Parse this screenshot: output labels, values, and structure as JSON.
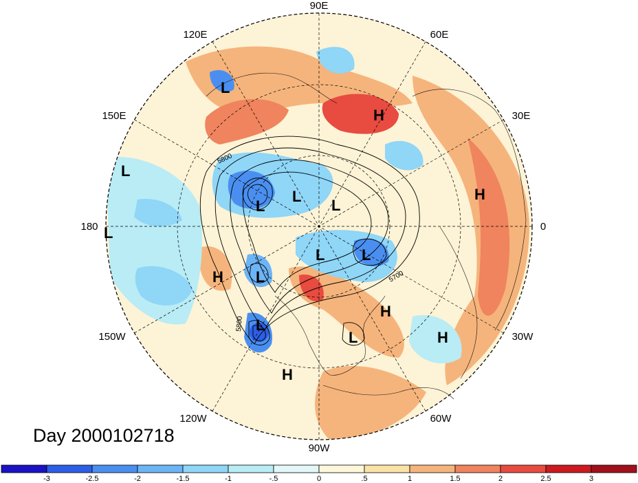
{
  "title": "Day 2000102718",
  "longitude_labels": [
    "90E",
    "60E",
    "30E",
    "0",
    "30W",
    "60W",
    "90W",
    "120W",
    "150W",
    "180",
    "150E",
    "120E"
  ],
  "pressure_systems": [
    "L",
    "H",
    "L",
    "L",
    "L",
    "L",
    "H",
    "L",
    "L",
    "L",
    "L",
    "H",
    "H",
    "L",
    "L",
    "H",
    "H"
  ],
  "contour_labels": [
    "5800",
    "5700",
    "5800"
  ],
  "colorbar": {
    "labels": [
      "-3",
      "-2.5",
      "-2",
      "-1.5",
      "-1",
      "-.5",
      "0",
      ".5",
      "1",
      "1.5",
      "2",
      "2.5",
      "3"
    ],
    "colors": [
      "#1b12c4",
      "#2d5ee6",
      "#4a8ff0",
      "#6cb4f5",
      "#8fd6f7",
      "#b9ecf5",
      "#e4f7f8",
      "#fdf8d9",
      "#fbe3a8",
      "#f5b47c",
      "#ef845e",
      "#e84b40",
      "#cc1a20",
      "#a0101b"
    ]
  },
  "colors": {
    "strong_positive": "#e84b40",
    "positive": "#f5b47c",
    "weak_positive": "#fbe3a8",
    "neutral": "#fdf8d9",
    "weak_negative": "#b9ecf5",
    "negative": "#6cb4f5",
    "strong_negative": "#2d5ee6"
  }
}
